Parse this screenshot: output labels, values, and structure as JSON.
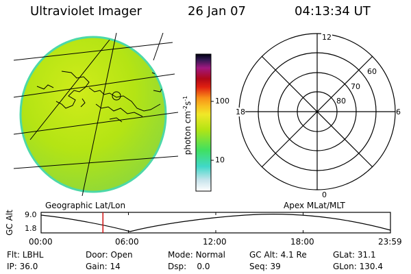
{
  "header": {
    "instrument": "Ultraviolet Imager",
    "date": "26 Jan 07",
    "time": "04:13:34 UT"
  },
  "earth_panel": {
    "label": "Geographic Lat/Lon"
  },
  "colorbar": {
    "unit_label": "photon cm",
    "unit_exp1": "-2",
    "unit_s": "s",
    "unit_exp2": "-1",
    "ticks": [
      "100",
      "10"
    ]
  },
  "polar_panel": {
    "label": "Apex MLat/MLT",
    "mlt_labels": {
      "top": "12",
      "left": "18",
      "right": "6",
      "bottom": "0"
    },
    "lat_labels": [
      "60",
      "70",
      "80"
    ]
  },
  "altitude_plot": {
    "ylabel": "GC Alt",
    "ymax": "9.0",
    "ymin": "1.8",
    "x_ticks": [
      "00:00",
      "06:00",
      "12:00",
      "18:00",
      "23:59"
    ],
    "current_time_fraction": 0.177
  },
  "info": {
    "flt_label": "Flt:",
    "flt_value": "LBHL",
    "ip_label": "IP:",
    "ip_value": "36.0",
    "door_label": "Door:",
    "door_value": "Open",
    "gain_label": "Gain:",
    "gain_value": "14",
    "mode_label": "Mode:",
    "mode_value": "Normal",
    "dsp_label": "Dsp:",
    "dsp_value": "0.0",
    "gcalt_label": "GC Alt:",
    "gcalt_value": "4.1 Re",
    "seq_label": "Seq:",
    "seq_value": "39",
    "glat_label": "GLat:",
    "glat_value": "31.1",
    "glon_label": "GLon:",
    "glon_value": "130.4"
  },
  "colors": {
    "earth_fill": "#b4e414",
    "earth_edge": "#40d8a0",
    "marker": "#d01010"
  }
}
